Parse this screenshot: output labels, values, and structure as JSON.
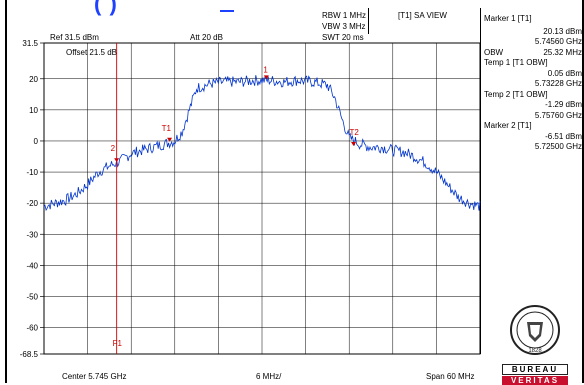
{
  "header": {
    "top_link": "(          )",
    "rbw": "RBW 1 MHz",
    "vbw": "VBW 3 MHz",
    "swt": "SWT 20 ms",
    "view": "[T1] SA VIEW",
    "ref": "Ref 31.5 dBm",
    "att": "Att  20 dB",
    "offset": "Offset 21.5 dB",
    "ref_level_label": "31.5"
  },
  "markers_panel": {
    "marker1_title": "Marker 1 [T1]",
    "marker1_level": "20.13 dBm",
    "marker1_freq": "5.74560 GHz",
    "obw_label": "OBW",
    "obw_value": "25.32 MHz",
    "temp1_title": "Temp 1 [T1 OBW]",
    "temp1_level": "0.05 dBm",
    "temp1_freq": "5.73228 GHz",
    "temp2_title": "Temp 2 [T1 OBW]",
    "temp2_level": "-1.29 dBm",
    "temp2_freq": "5.75760 GHz",
    "marker2_title": "Marker 2 [T1]",
    "marker2_level": "-6.51 dBm",
    "marker2_freq": "5.72500 GHz"
  },
  "footer": {
    "center": "Center 5.745 GHz",
    "div": "6 MHz/",
    "span": "Span 60 MHz"
  },
  "logo": {
    "text_top": "BUREAU",
    "text_bottom": "VERITAS",
    "seal_year": "1828"
  },
  "colors": {
    "trace": "#0033cc",
    "marker": "#cc0000",
    "logo_red": "#c8102e"
  },
  "chart_data": {
    "type": "line",
    "ylim": [
      -68.5,
      31.5
    ],
    "y_tick_labels": [
      "31.5",
      "20",
      "10",
      "0",
      "-10",
      "-20",
      "-30",
      "-40",
      "-50",
      "-60",
      "-68.5"
    ],
    "y_ticks": [
      31.5,
      20,
      10,
      0,
      -10,
      -20,
      -30,
      -40,
      -50,
      -60,
      -68.5
    ],
    "x_range_ghz": [
      5.715,
      5.775
    ],
    "marker_labels": {
      "m1": "1",
      "m2": "2",
      "t1": "T1",
      "t2": "T2",
      "f1": "F1"
    },
    "markers": {
      "m1": {
        "freq": 5.7456,
        "level": 20.13
      },
      "m2": {
        "freq": 5.725,
        "level": -6.51
      },
      "t1": {
        "freq": 5.73228,
        "level": 0.05
      },
      "t2": {
        "freq": 5.7576,
        "level": -1.29
      },
      "f1_freq": 5.725
    },
    "series": [
      {
        "x": [
          5.715,
          5.7165,
          5.718,
          5.7195,
          5.721,
          5.7225,
          5.724,
          5.7255,
          5.727,
          5.7285,
          5.73,
          5.7315,
          5.733,
          5.734,
          5.735,
          5.736,
          5.738,
          5.74,
          5.742,
          5.744,
          5.746,
          5.748,
          5.75,
          5.752,
          5.754,
          5.755,
          5.756,
          5.757,
          5.7585,
          5.76,
          5.7615,
          5.763,
          5.7645,
          5.766,
          5.7675,
          5.769,
          5.7705,
          5.772,
          5.7735,
          5.775
        ],
        "y": [
          -21,
          -20,
          -19,
          -17,
          -14,
          -10,
          -8,
          -6.5,
          -4,
          -3,
          -2,
          -1,
          0,
          3,
          10,
          17,
          18.5,
          19,
          19,
          19.5,
          19.5,
          19,
          19.5,
          19,
          18,
          14,
          7,
          1,
          -1,
          -2,
          -2,
          -3,
          -3.5,
          -5,
          -7,
          -10,
          -14,
          -18,
          -20,
          -21
        ]
      }
    ]
  }
}
